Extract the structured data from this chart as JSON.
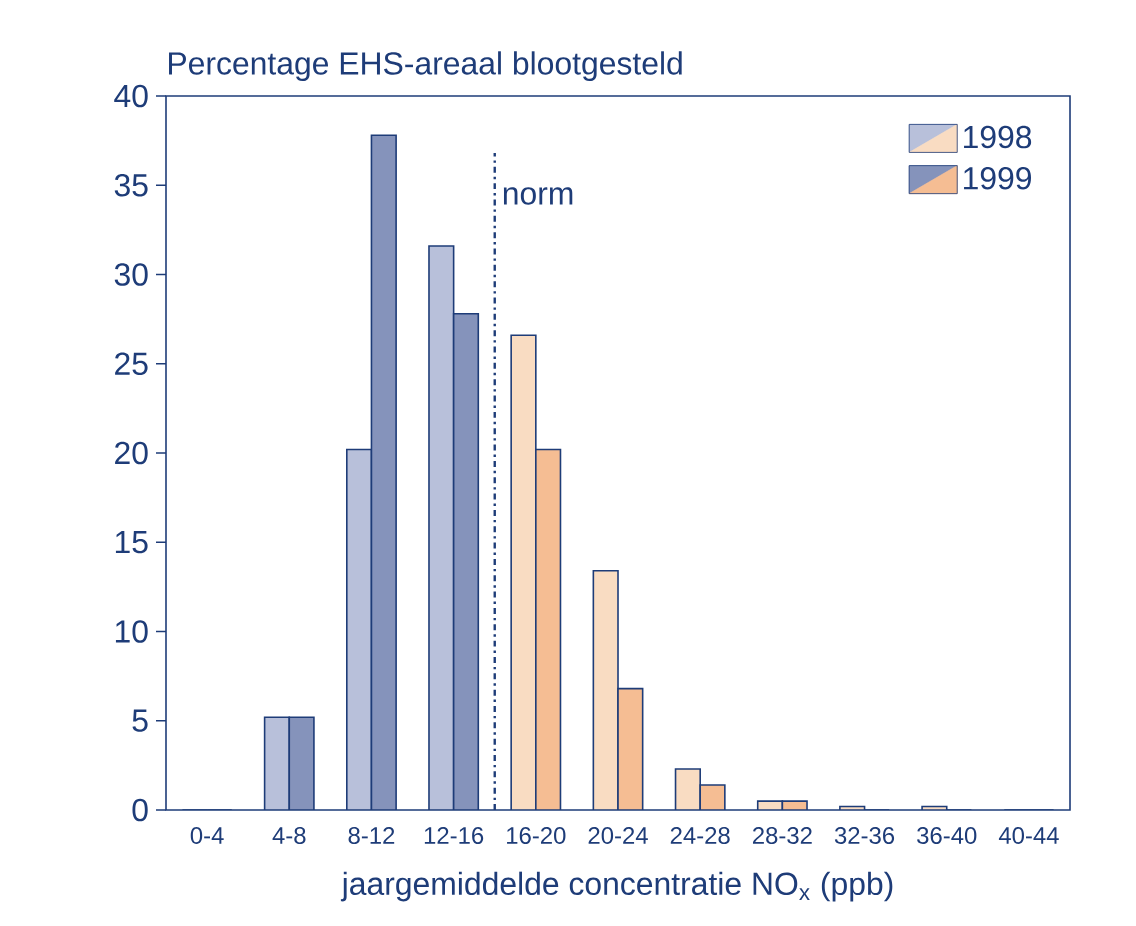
{
  "chart_data": {
    "type": "bar",
    "title": "Percentage EHS-areaal blootgesteld",
    "xlabel": "jaargemiddelde concentratie NO$_{x}$ (ppb)",
    "categories": [
      "0-4",
      "4-8",
      "8-12",
      "12-16",
      "16-20",
      "20-24",
      "24-28",
      "28-32",
      "32-36",
      "36-40",
      "40-44"
    ],
    "series": [
      {
        "name": "1998",
        "values": [
          0,
          5.2,
          20.2,
          31.6,
          26.6,
          13.4,
          2.3,
          0.5,
          0.2,
          0.2,
          0
        ],
        "colors": [
          "#b8c0da",
          "#b8c0da",
          "#b8c0da",
          "#b8c0da",
          "#f9dcc2",
          "#f9dcc2",
          "#f9dcc2",
          "#f9dcc2",
          "#f9dcc2",
          "#f9dcc2",
          "#f9dcc2"
        ]
      },
      {
        "name": "1999",
        "values": [
          0,
          5.2,
          37.8,
          27.8,
          20.2,
          6.8,
          1.4,
          0.5,
          0,
          0,
          0
        ],
        "colors": [
          "#8593bb",
          "#8593bb",
          "#8593bb",
          "#8593bb",
          "#f5bd93",
          "#f5bd93",
          "#f5bd93",
          "#f5bd93",
          "#f5bd93",
          "#f5bd93",
          "#f5bd93"
        ]
      }
    ],
    "ylim": [
      0,
      40
    ],
    "yticks": [
      0,
      5,
      10,
      15,
      20,
      25,
      30,
      35,
      40
    ],
    "ref_lines": [
      {
        "axis": "x",
        "value": "16-20",
        "label": "norm",
        "line_style": "dashdot",
        "color": "#1e3c78"
      }
    ],
    "legend": "top right",
    "grid": false
  }
}
